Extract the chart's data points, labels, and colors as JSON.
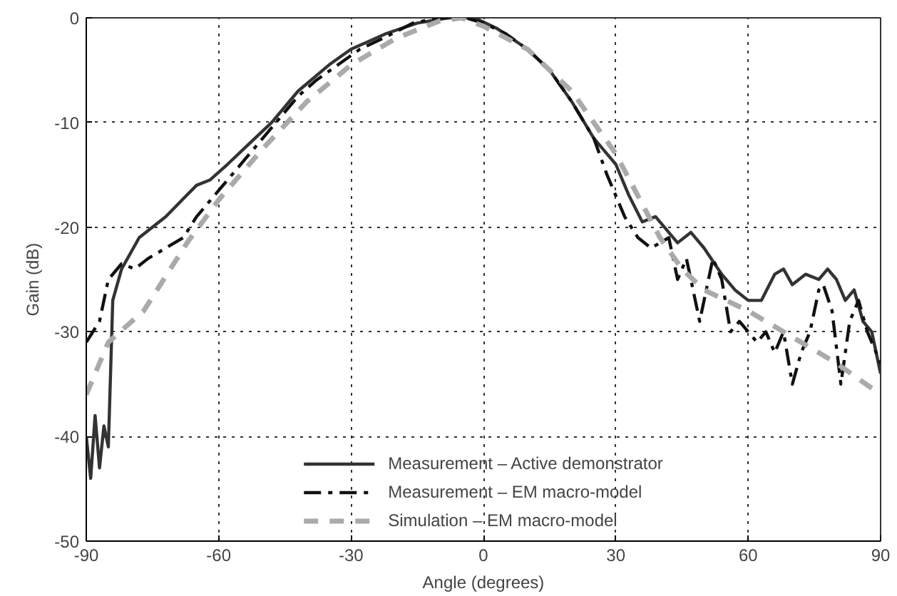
{
  "chart_data": {
    "type": "line",
    "xlabel": "Angle (degrees)",
    "ylabel": "Gain (dB)",
    "xlim": [
      -90,
      90
    ],
    "ylim": [
      -50,
      0
    ],
    "xticks": [
      -90,
      -60,
      -30,
      0,
      30,
      60,
      90
    ],
    "yticks": [
      -50,
      -40,
      -30,
      -20,
      -10,
      0
    ],
    "grid": true,
    "legend": "bottom",
    "marker": "none",
    "series": [
      {
        "name": "Measurement – Active demonstrator",
        "color": "#333333",
        "line_style": "solid",
        "x": [
          -90,
          -89,
          -88,
          -87,
          -86,
          -85,
          -84,
          -82,
          -78,
          -72,
          -65,
          -62,
          -58,
          -53,
          -48,
          -42,
          -35,
          -30,
          -22,
          -15,
          -8,
          -2,
          3,
          10,
          15,
          20,
          25,
          28,
          30,
          33,
          36,
          39,
          41,
          44,
          47,
          50,
          54,
          57,
          60,
          63,
          66,
          68,
          70,
          73,
          76,
          78,
          80,
          82,
          84,
          86,
          88,
          90
        ],
        "values": [
          -40,
          -44,
          -38,
          -43,
          -39,
          -41,
          -27,
          -24,
          -21,
          -19,
          -16,
          -15.5,
          -14,
          -12,
          -10,
          -7,
          -4.5,
          -3,
          -1.5,
          -0.5,
          0,
          0,
          -1,
          -3,
          -5,
          -8,
          -11.5,
          -13,
          -14,
          -17,
          -19.5,
          -19,
          -20,
          -21.5,
          -20.5,
          -22,
          -24.5,
          -26,
          -27,
          -27,
          -24.5,
          -24,
          -25.5,
          -24.5,
          -25,
          -24,
          -25,
          -27,
          -26,
          -29,
          -30,
          -34
        ]
      },
      {
        "name": "Measurement – EM macro-model",
        "color": "#111111",
        "line_style": "dashed",
        "x": [
          -90,
          -87,
          -85,
          -82,
          -79,
          -76,
          -72,
          -68,
          -65,
          -62,
          -58,
          -54,
          -50,
          -46,
          -42,
          -38,
          -33,
          -28,
          -22,
          -16,
          -10,
          -4,
          0,
          5,
          10,
          15,
          20,
          25,
          28,
          30,
          32,
          35,
          38,
          42,
          44,
          46,
          49,
          52,
          54,
          56,
          58,
          60,
          62,
          64,
          66,
          68,
          70,
          72,
          74,
          76,
          77,
          79,
          81,
          83,
          85,
          87,
          90
        ],
        "values": [
          -31,
          -29,
          -25,
          -23.5,
          -24,
          -23,
          -22,
          -21,
          -19,
          -17.5,
          -15.5,
          -13.5,
          -11.5,
          -9.5,
          -7.5,
          -6,
          -4.5,
          -3,
          -1.8,
          -0.5,
          0,
          0,
          -0.5,
          -1.5,
          -3,
          -5,
          -8,
          -11.5,
          -15,
          -17,
          -19,
          -21,
          -22,
          -21,
          -25,
          -23,
          -29,
          -23,
          -25,
          -30,
          -29,
          -30,
          -31,
          -30,
          -32,
          -30,
          -35,
          -32,
          -30,
          -26,
          -25.5,
          -28,
          -35,
          -29,
          -27,
          -30,
          -33
        ]
      },
      {
        "name": "Simulation – EM macro-model",
        "color": "#aaaaaa",
        "line_style": "dashed",
        "x": [
          -90,
          -85,
          -77,
          -67,
          -60,
          -50,
          -40,
          -30,
          -20,
          -10,
          -5,
          0,
          10,
          20,
          30,
          35,
          40,
          45,
          50,
          60,
          70,
          80,
          90
        ],
        "values": [
          -36,
          -31,
          -28,
          -21.4,
          -17.4,
          -12.5,
          -8,
          -4.5,
          -2,
          -0.3,
          0,
          -0.8,
          -3,
          -7,
          -13,
          -17,
          -21,
          -24,
          -26,
          -28,
          -30.5,
          -33,
          -36
        ]
      }
    ]
  }
}
